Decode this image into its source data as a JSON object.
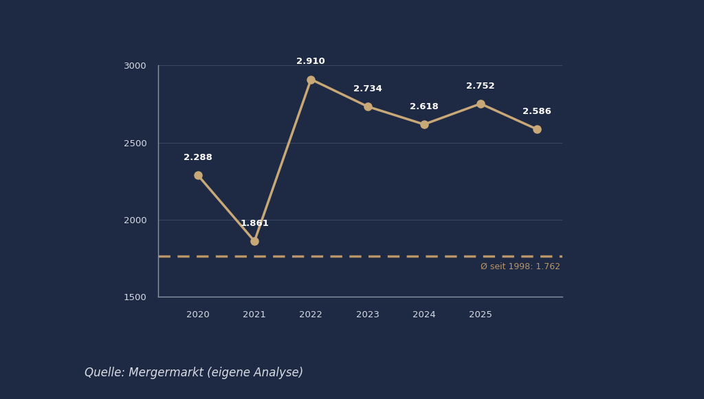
{
  "chart_data": {
    "type": "line",
    "categories": [
      "2020",
      "2021",
      "2022",
      "2023",
      "2024",
      "2025",
      null
    ],
    "values": [
      2288,
      1861,
      2910,
      2734,
      2618,
      2752,
      2586
    ],
    "value_labels": [
      "2.288",
      "1.861",
      "2.910",
      "2.734",
      "2.618",
      "2.752",
      "2.586"
    ],
    "data_labels": true,
    "color": "#c9a878",
    "marker": "o",
    "line_style": "solid",
    "ylim": [
      1500,
      3000
    ],
    "yticks": [
      1500,
      2000,
      2500,
      3000
    ],
    "grid": true,
    "average": {
      "value": 1762,
      "label": "Ø seit 1998: 1.762",
      "color": "#b89467",
      "line_style": "dashed"
    },
    "source": "Quelle: Mergermarkt (eigene Analyse)"
  }
}
